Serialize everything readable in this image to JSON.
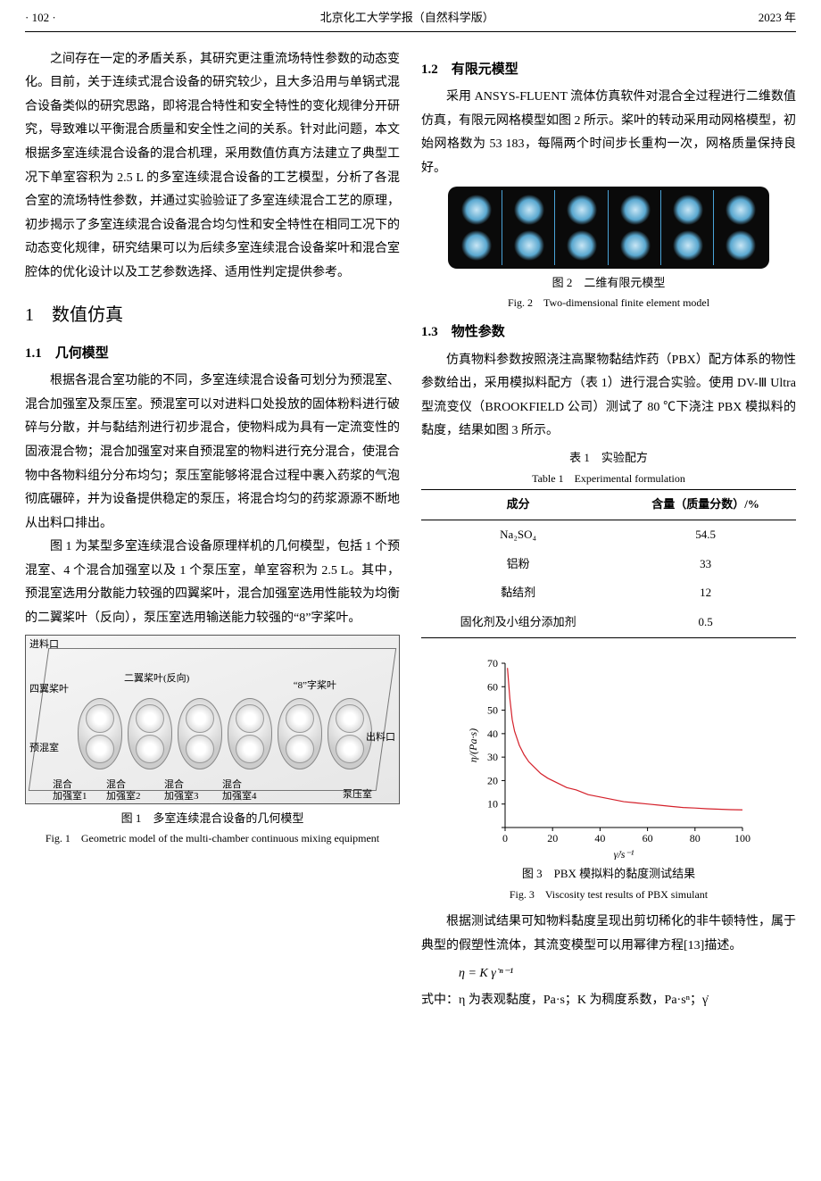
{
  "header": {
    "page": "· 102 ·",
    "journal": "北京化工大学学报（自然科学版）",
    "year": "2023 年"
  },
  "col1": {
    "p1": "之间存在一定的矛盾关系，其研究更注重流场特性参数的动态变化。目前，关于连续式混合设备的研究较少，且大多沿用与单锅式混合设备类似的研究思路，即将混合特性和安全特性的变化规律分开研究，导致难以平衡混合质量和安全性之间的关系。针对此问题，本文根据多室连续混合设备的混合机理，采用数值仿真方法建立了典型工况下单室容积为 2.5 L 的多室连续混合设备的工艺模型，分析了各混合室的流场特性参数，并通过实验验证了多室连续混合工艺的原理，初步揭示了多室连续混合设备混合均匀性和安全特性在相同工况下的动态变化规律，研究结果可以为后续多室连续混合设备桨叶和混合室腔体的优化设计以及工艺参数选择、适用性判定提供参考。",
    "sec1": "1　数值仿真",
    "sec11": "1.1　几何模型",
    "p2": "根据各混合室功能的不同，多室连续混合设备可划分为预混室、混合加强室及泵压室。预混室可以对进料口处投放的固体粉料进行破碎与分散，并与黏结剂进行初步混合，使物料成为具有一定流变性的固液混合物；混合加强室对来自预混室的物料进行充分混合，使混合物中各物料组分分布均匀；泵压室能够将混合过程中裹入药浆的气泡彻底碾碎，并为设备提供稳定的泵压，将混合均匀的药浆源源不断地从出料口排出。",
    "p3": "图 1 为某型多室连续混合设备原理样机的几何模型，包括 1 个预混室、4 个混合加强室以及 1 个泵压室，单室容积为 2.5 L。其中，预混室选用分散能力较强的四翼桨叶，混合加强室选用性能较为均衡的二翼桨叶（反向），泵压室选用输送能力较强的“8”字桨叶。",
    "fig1": {
      "labels": {
        "inlet": "进料口",
        "fourBlade": "四翼桨叶",
        "twoBlade": "二翼桨叶(反向)",
        "eightBlade": "“8”字桨叶",
        "premix": "预混室",
        "outlet": "出料口",
        "mix1": "混合\n加强室1",
        "mix2": "混合\n加强室2",
        "mix3": "混合\n加强室3",
        "mix4": "混合\n加强室4",
        "pump": "泵压室"
      },
      "cap_zh": "图 1　多室连续混合设备的几何模型",
      "cap_en": "Fig. 1　Geometric model of the multi-chamber continuous mixing equipment"
    }
  },
  "col2": {
    "sec12": "1.2　有限元模型",
    "p4": "采用 ANSYS-FLUENT 流体仿真软件对混合全过程进行二维数值仿真，有限元网格模型如图 2 所示。桨叶的转动采用动网格模型，初始网格数为 53 183，每隔两个时间步长重构一次，网格质量保持良好。",
    "fig2": {
      "cap_zh": "图 2　二维有限元模型",
      "cap_en": "Fig. 2　Two-dimensional finite element model"
    },
    "sec13": "1.3　物性参数",
    "p5": "仿真物料参数按照浇注高聚物黏结炸药（PBX）配方体系的物性参数给出，采用模拟料配方（表 1）进行混合实验。使用 DV-Ⅲ Ultra 型流变仪（BROOKFIELD 公司）测试了 80 ℃下浇注 PBX 模拟料的黏度，结果如图 3 所示。",
    "table1": {
      "cap_zh": "表 1　实验配方",
      "cap_en": "Table 1　Experimental formulation",
      "head": [
        "成分",
        "含量（质量分数）/%"
      ],
      "rows": [
        [
          "Na₂SO₄",
          "54.5"
        ],
        [
          "铝粉",
          "33"
        ],
        [
          "黏结剂",
          "12"
        ],
        [
          "固化剂及小组分添加剂",
          "0.5"
        ]
      ]
    },
    "chart": {
      "type": "line",
      "xlim": [
        0,
        100
      ],
      "ylim": [
        0,
        70
      ],
      "xtick_step": 20,
      "ytick_step": 10,
      "xlabel": "γ̇/s⁻¹",
      "ylabel": "η/(Pa·s)",
      "line_color": "#d4202a",
      "grid_color": "#000000",
      "background_color": "#ffffff",
      "line_width": 1.2,
      "label_fontsize": 12,
      "points": [
        [
          1,
          68
        ],
        [
          2,
          55
        ],
        [
          3,
          46
        ],
        [
          4,
          41
        ],
        [
          5,
          38
        ],
        [
          6,
          35
        ],
        [
          8,
          31
        ],
        [
          10,
          28
        ],
        [
          12,
          26
        ],
        [
          15,
          23
        ],
        [
          18,
          21
        ],
        [
          22,
          19
        ],
        [
          26,
          17
        ],
        [
          30,
          16
        ],
        [
          35,
          14
        ],
        [
          40,
          13
        ],
        [
          45,
          12
        ],
        [
          50,
          11
        ],
        [
          55,
          10.5
        ],
        [
          60,
          10
        ],
        [
          65,
          9.5
        ],
        [
          70,
          9
        ],
        [
          75,
          8.5
        ],
        [
          80,
          8.3
        ],
        [
          85,
          8
        ],
        [
          90,
          7.8
        ],
        [
          95,
          7.6
        ],
        [
          100,
          7.5
        ]
      ],
      "cap_zh": "图 3　PBX 模拟料的黏度测试结果",
      "cap_en": "Fig. 3　Viscosity test results of PBX simulant"
    },
    "p6": "根据测试结果可知物料黏度呈现出剪切稀化的非牛顿特性，属于典型的假塑性流体，其流变模型可以用幂律方程[13]描述。",
    "eq": "η = K γ̇ ⁿ⁻¹",
    "p7": "式中：η 为表观黏度，Pa·s；K 为稠度系数，Pa·sⁿ；γ̇"
  }
}
